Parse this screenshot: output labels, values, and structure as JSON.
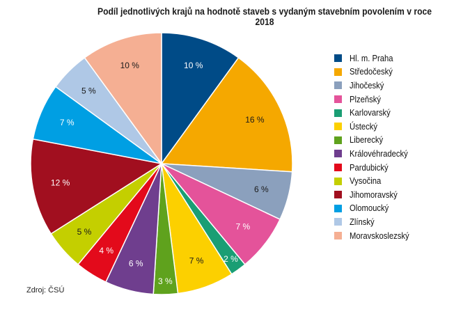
{
  "title": "Podíl jednotlivých krajů na hodnotě staveb s vydaným stavebním povolením v roce 2018",
  "source": "Zdroj: ČSÚ",
  "chart_data": {
    "type": "pie",
    "title": "Podíl jednotlivých krajů na hodnotě staveb s vydaným stavebním povolením v roce 2018",
    "legend_position": "right",
    "slices": [
      {
        "name": "Hl. m. Praha",
        "value": 10,
        "label": "10 %",
        "color": "#004b87"
      },
      {
        "name": "Středočeský",
        "value": 16,
        "label": "16 %",
        "color": "#f5a800"
      },
      {
        "name": "Jihočeský",
        "value": 6,
        "label": "6 %",
        "color": "#8ba0bd"
      },
      {
        "name": "Plzeňský",
        "value": 7,
        "label": "7 %",
        "color": "#e4539a"
      },
      {
        "name": "Karlovarský",
        "value": 2,
        "label": "2 %",
        "color": "#1a9e74"
      },
      {
        "name": "Ústecký",
        "value": 7,
        "label": "7 %",
        "color": "#fcd000"
      },
      {
        "name": "Liberecký",
        "value": 3,
        "label": "3 %",
        "color": "#5fa21d"
      },
      {
        "name": "Královéhradecký",
        "value": 6,
        "label": "6 %",
        "color": "#6f3e8e"
      },
      {
        "name": "Pardubický",
        "value": 4,
        "label": "4 %",
        "color": "#e30a1b"
      },
      {
        "name": "Vysočina",
        "value": 5,
        "label": "5 %",
        "color": "#c4cf00"
      },
      {
        "name": "Jihomoravský",
        "value": 12,
        "label": "12 %",
        "color": "#a10f1f"
      },
      {
        "name": "Olomoucký",
        "value": 7,
        "label": "7 %",
        "color": "#009fe3"
      },
      {
        "name": "Zlínský",
        "value": 5,
        "label": "5 %",
        "color": "#afc8e6"
      },
      {
        "name": "Moravskoslezský",
        "value": 10,
        "label": "10 %",
        "color": "#f5af93"
      }
    ]
  }
}
